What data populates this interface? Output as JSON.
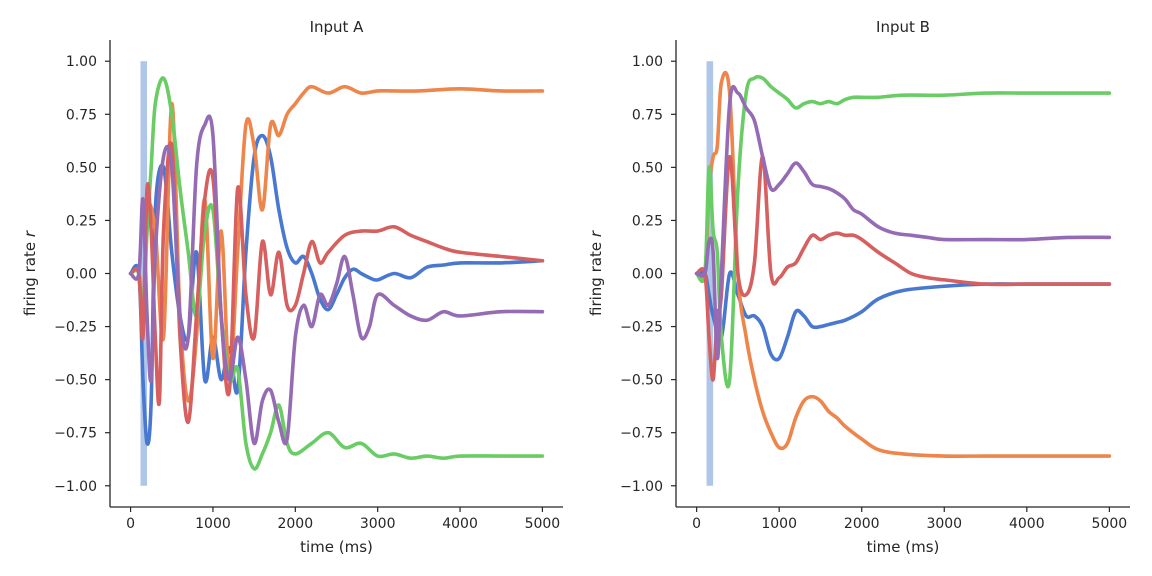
{
  "chart_data": [
    {
      "type": "line",
      "title": "Input A",
      "xlabel": "time (ms)",
      "ylabel_text": "firing rate ",
      "ylabel_var": "r",
      "xlim": [
        -250,
        5250
      ],
      "ylim": [
        -1.1,
        1.1
      ],
      "xticks": [
        0,
        1000,
        2000,
        3000,
        4000,
        5000
      ],
      "yticks": [
        -1.0,
        -0.75,
        -0.5,
        -0.25,
        0.0,
        0.25,
        0.5,
        0.75,
        1.0
      ],
      "ytick_labels": [
        "−1.00",
        "−0.75",
        "−0.50",
        "−0.25",
        "0.00",
        "0.25",
        "0.50",
        "0.75",
        "1.00"
      ],
      "stimulus": {
        "x_start": 120,
        "x_end": 200,
        "y_min": -1.0,
        "y_max": 1.0,
        "color": "#aec7e8"
      },
      "series": [
        {
          "color": "#4878d0",
          "x": [
            0,
            100,
            150,
            200,
            250,
            300,
            400,
            500,
            600,
            700,
            800,
            900,
            1000,
            1100,
            1200,
            1300,
            1400,
            1500,
            1600,
            1700,
            1800,
            1900,
            2000,
            2100,
            2200,
            2300,
            2400,
            2500,
            2600,
            2700,
            2800,
            2900,
            3000,
            3200,
            3400,
            3600,
            3800,
            4000,
            4500,
            5000
          ],
          "y": [
            0,
            0,
            -0.5,
            -0.8,
            -0.6,
            0.3,
            0.5,
            0.1,
            -0.2,
            -0.3,
            0.1,
            -0.5,
            -0.3,
            -0.5,
            -0.35,
            -0.55,
            0.1,
            0.55,
            0.65,
            0.55,
            0.3,
            0.12,
            0.05,
            0.08,
            0.0,
            -0.12,
            -0.17,
            -0.1,
            -0.02,
            0.02,
            0.0,
            -0.02,
            -0.03,
            0.0,
            -0.02,
            0.03,
            0.04,
            0.05,
            0.05,
            0.06
          ]
        },
        {
          "color": "#ee854a",
          "x": [
            0,
            100,
            150,
            200,
            300,
            400,
            500,
            600,
            700,
            800,
            900,
            1000,
            1100,
            1200,
            1300,
            1400,
            1500,
            1600,
            1700,
            1800,
            1900,
            2000,
            2100,
            2200,
            2400,
            2600,
            2800,
            3000,
            3200,
            3500,
            4000,
            4500,
            5000
          ],
          "y": [
            0,
            0,
            -0.25,
            0.3,
            0.2,
            -0.3,
            0.8,
            -0.2,
            -0.6,
            -0.3,
            0.35,
            -0.4,
            0.2,
            -0.5,
            0.1,
            0.7,
            0.6,
            0.3,
            0.7,
            0.65,
            0.75,
            0.8,
            0.85,
            0.88,
            0.85,
            0.88,
            0.85,
            0.86,
            0.86,
            0.86,
            0.87,
            0.86,
            0.86
          ]
        },
        {
          "color": "#6acc64",
          "x": [
            0,
            100,
            150,
            200,
            250,
            300,
            400,
            500,
            600,
            700,
            800,
            900,
            1000,
            1100,
            1200,
            1300,
            1400,
            1500,
            1600,
            1700,
            1800,
            1900,
            2000,
            2200,
            2400,
            2600,
            2800,
            3000,
            3200,
            3400,
            3600,
            3800,
            4000,
            4500,
            5000
          ],
          "y": [
            0,
            0,
            -0.2,
            0.2,
            0.5,
            0.8,
            0.92,
            0.75,
            0.4,
            0.1,
            -0.2,
            0.2,
            0.3,
            -0.2,
            -0.5,
            -0.45,
            -0.8,
            -0.92,
            -0.85,
            -0.75,
            -0.62,
            -0.8,
            -0.85,
            -0.8,
            -0.75,
            -0.82,
            -0.8,
            -0.86,
            -0.85,
            -0.87,
            -0.86,
            -0.87,
            -0.86,
            -0.86,
            -0.86
          ]
        },
        {
          "color": "#d65f5f",
          "x": [
            0,
            100,
            150,
            200,
            250,
            300,
            350,
            400,
            500,
            600,
            700,
            800,
            900,
            1000,
            1100,
            1200,
            1300,
            1400,
            1500,
            1600,
            1700,
            1800,
            1900,
            2000,
            2100,
            2200,
            2300,
            2400,
            2600,
            2800,
            3000,
            3200,
            3400,
            3600,
            3800,
            4000,
            4500,
            5000
          ],
          "y": [
            0,
            0,
            -0.3,
            0.4,
            0.2,
            -0.3,
            -0.6,
            0.2,
            0.6,
            -0.3,
            -0.7,
            -0.2,
            0.35,
            0.45,
            -0.2,
            -0.55,
            0.4,
            -0.1,
            -0.3,
            0.15,
            -0.1,
            0.1,
            -0.15,
            -0.15,
            0.0,
            0.15,
            0.05,
            0.1,
            0.18,
            0.2,
            0.2,
            0.22,
            0.18,
            0.15,
            0.12,
            0.1,
            0.08,
            0.06
          ]
        },
        {
          "color": "#956cb4",
          "x": [
            0,
            100,
            150,
            200,
            250,
            300,
            400,
            500,
            600,
            700,
            800,
            900,
            1000,
            1100,
            1200,
            1300,
            1400,
            1500,
            1600,
            1700,
            1800,
            1900,
            2000,
            2100,
            2200,
            2300,
            2400,
            2500,
            2600,
            2700,
            2800,
            2900,
            3000,
            3200,
            3400,
            3600,
            3800,
            4000,
            4500,
            5000
          ],
          "y": [
            0,
            0,
            0.35,
            -0.2,
            -0.5,
            0.1,
            0.55,
            0.5,
            -0.2,
            -0.3,
            0.5,
            0.7,
            0.65,
            -0.2,
            -0.5,
            -0.3,
            -0.5,
            -0.8,
            -0.6,
            -0.55,
            -0.7,
            -0.78,
            -0.3,
            -0.15,
            -0.25,
            -0.1,
            -0.15,
            -0.05,
            0.08,
            -0.1,
            -0.3,
            -0.25,
            -0.1,
            -0.15,
            -0.2,
            -0.22,
            -0.18,
            -0.2,
            -0.18,
            -0.18
          ]
        }
      ]
    },
    {
      "type": "line",
      "title": "Input B",
      "xlabel": "time (ms)",
      "ylabel_text": "firing rate ",
      "ylabel_var": "r",
      "xlim": [
        -250,
        5250
      ],
      "ylim": [
        -1.1,
        1.1
      ],
      "xticks": [
        0,
        1000,
        2000,
        3000,
        4000,
        5000
      ],
      "yticks": [
        -1.0,
        -0.75,
        -0.5,
        -0.25,
        0.0,
        0.25,
        0.5,
        0.75,
        1.0
      ],
      "ytick_labels": [
        "−1.00",
        "−0.75",
        "−0.50",
        "−0.25",
        "0.00",
        "0.25",
        "0.50",
        "0.75",
        "1.00"
      ],
      "stimulus": {
        "x_start": 120,
        "x_end": 200,
        "y_min": -1.0,
        "y_max": 1.0,
        "color": "#aec7e8"
      },
      "series": [
        {
          "color": "#4878d0",
          "x": [
            0,
            100,
            150,
            200,
            300,
            400,
            500,
            600,
            700,
            800,
            900,
            1000,
            1100,
            1200,
            1300,
            1400,
            1500,
            1600,
            1700,
            1800,
            2000,
            2200,
            2500,
            3000,
            3500,
            4000,
            4500,
            5000
          ],
          "y": [
            0,
            0,
            -0.1,
            -0.2,
            -0.3,
            0.0,
            -0.1,
            -0.2,
            -0.2,
            -0.25,
            -0.38,
            -0.4,
            -0.3,
            -0.18,
            -0.2,
            -0.25,
            -0.25,
            -0.24,
            -0.23,
            -0.22,
            -0.18,
            -0.12,
            -0.08,
            -0.06,
            -0.05,
            -0.05,
            -0.05,
            -0.05
          ]
        },
        {
          "color": "#ee854a",
          "x": [
            0,
            100,
            150,
            200,
            250,
            300,
            400,
            500,
            600,
            700,
            800,
            900,
            1000,
            1100,
            1200,
            1300,
            1400,
            1500,
            1600,
            1700,
            1800,
            2000,
            2200,
            2500,
            3000,
            3500,
            4000,
            4500,
            5000
          ],
          "y": [
            0,
            0,
            0.4,
            0.55,
            0.6,
            0.9,
            0.85,
            0.0,
            -0.3,
            -0.5,
            -0.65,
            -0.75,
            -0.82,
            -0.8,
            -0.68,
            -0.6,
            -0.58,
            -0.6,
            -0.65,
            -0.68,
            -0.72,
            -0.78,
            -0.83,
            -0.85,
            -0.86,
            -0.86,
            -0.86,
            -0.86,
            -0.86
          ]
        },
        {
          "color": "#6acc64",
          "x": [
            0,
            100,
            150,
            200,
            250,
            300,
            400,
            500,
            600,
            700,
            800,
            900,
            1000,
            1100,
            1200,
            1300,
            1400,
            1500,
            1600,
            1700,
            1800,
            1900,
            2000,
            2200,
            2500,
            3000,
            3500,
            4000,
            4500,
            5000
          ],
          "y": [
            0,
            0,
            0.5,
            0.2,
            0.1,
            -0.3,
            -0.5,
            0.4,
            0.85,
            0.92,
            0.92,
            0.88,
            0.85,
            0.82,
            0.78,
            0.8,
            0.81,
            0.8,
            0.81,
            0.8,
            0.82,
            0.83,
            0.83,
            0.83,
            0.84,
            0.84,
            0.85,
            0.85,
            0.85,
            0.85
          ]
        },
        {
          "color": "#d65f5f",
          "x": [
            0,
            100,
            150,
            200,
            250,
            300,
            400,
            500,
            600,
            700,
            800,
            900,
            1000,
            1100,
            1200,
            1300,
            1400,
            1500,
            1600,
            1700,
            1800,
            1900,
            2000,
            2200,
            2400,
            2600,
            2800,
            3000,
            3500,
            4000,
            4500,
            5000
          ],
          "y": [
            0,
            0,
            -0.3,
            -0.5,
            -0.2,
            -0.1,
            0.55,
            0.0,
            -0.1,
            0.05,
            0.55,
            0.0,
            -0.02,
            0.03,
            0.05,
            0.12,
            0.18,
            0.16,
            0.18,
            0.19,
            0.18,
            0.18,
            0.16,
            0.1,
            0.05,
            0.0,
            -0.02,
            -0.03,
            -0.05,
            -0.05,
            -0.05,
            -0.05
          ]
        },
        {
          "color": "#956cb4",
          "x": [
            0,
            100,
            150,
            200,
            250,
            300,
            400,
            500,
            600,
            700,
            800,
            900,
            1000,
            1100,
            1200,
            1300,
            1400,
            1500,
            1600,
            1700,
            1800,
            1900,
            2000,
            2200,
            2400,
            2600,
            2800,
            3000,
            3500,
            4000,
            4500,
            5000
          ],
          "y": [
            0,
            0,
            0.15,
            0.1,
            -0.4,
            0.0,
            0.8,
            0.85,
            0.78,
            0.72,
            0.55,
            0.4,
            0.42,
            0.47,
            0.52,
            0.48,
            0.42,
            0.41,
            0.4,
            0.38,
            0.35,
            0.3,
            0.28,
            0.22,
            0.19,
            0.18,
            0.17,
            0.16,
            0.16,
            0.16,
            0.17,
            0.17
          ]
        }
      ]
    }
  ]
}
